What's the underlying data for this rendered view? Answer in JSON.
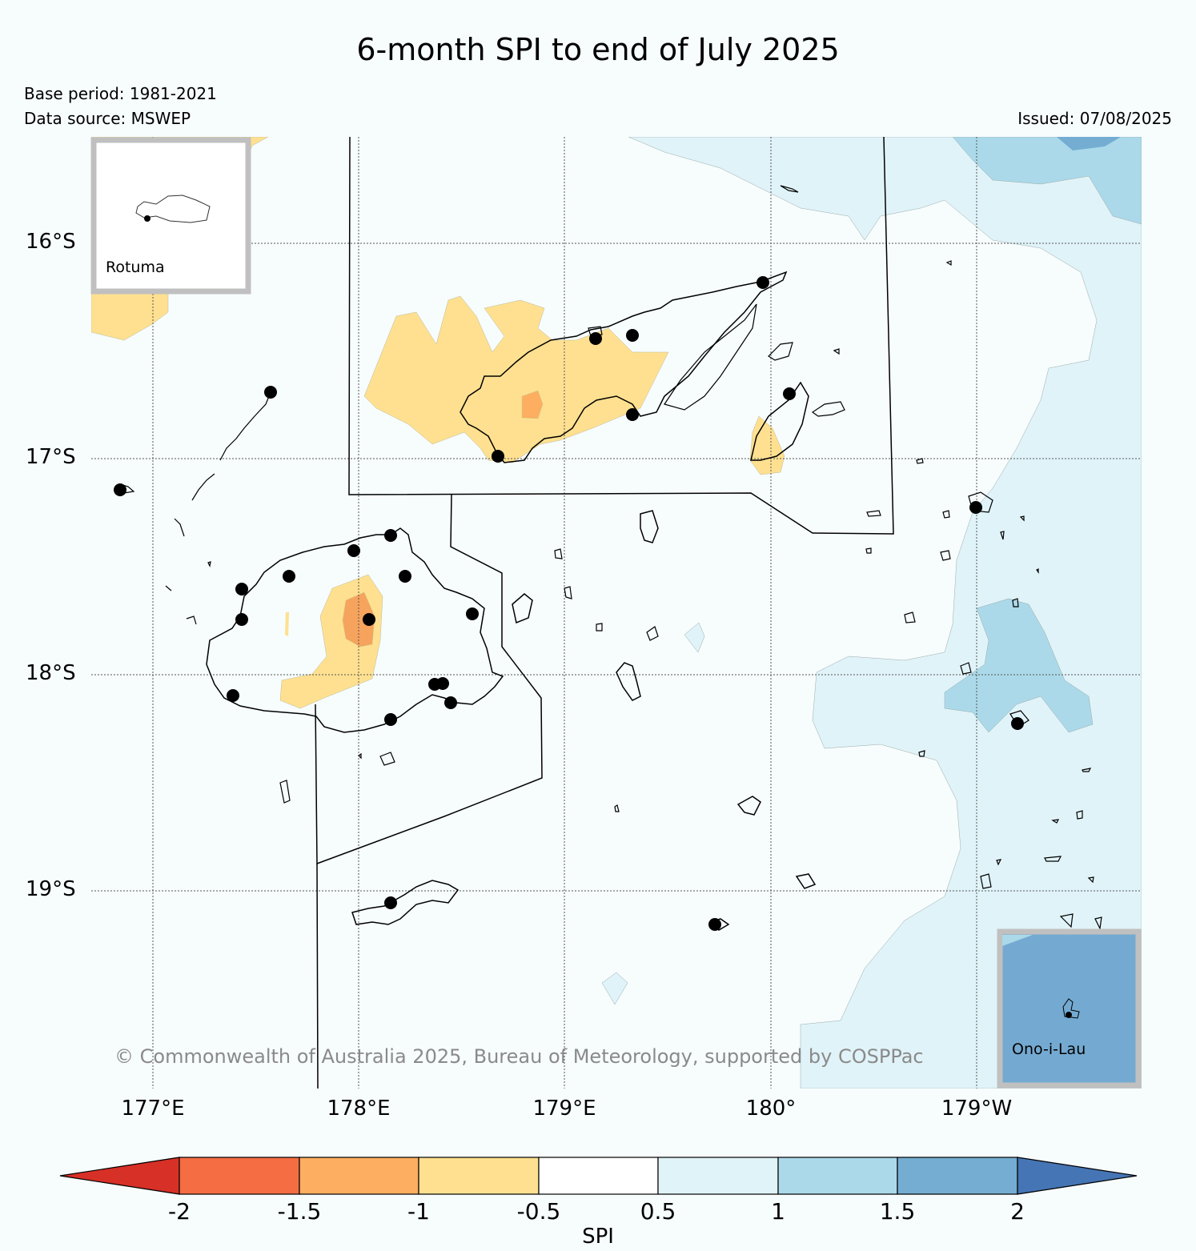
{
  "title": "6-month SPI to end of July 2025",
  "base_period": "Base period: 1981-2021",
  "data_source": "Data source: MSWEP",
  "issued": "Issued: 07/08/2025",
  "copyright": "© Commonwealth of Australia 2025, Bureau of Meteorology, supported by COSPPac",
  "lat_labels": [
    "16°S",
    "17°S",
    "18°S",
    "19°S"
  ],
  "lon_labels": [
    "177°E",
    "178°E",
    "179°E",
    "180°",
    "179°W"
  ],
  "insets": {
    "rotuma": "Rotuma",
    "ono_i_lau": "Ono-i-Lau"
  },
  "colorbar": {
    "label": "SPI",
    "ticks": [
      "-2",
      "-1.5",
      "-1",
      "-0.5",
      "0.5",
      "1",
      "1.5",
      "2"
    ],
    "colors": {
      "below_min": "#d73027",
      "m2_m15": "#f46d43",
      "m15_m1": "#fdae61",
      "m1_m05": "#fee090",
      "m05_05": "#ffffff",
      "05_1": "#e0f3f8",
      "1_15": "#abd9e9",
      "15_2": "#74add1",
      "above_max": "#4575b4"
    }
  }
}
